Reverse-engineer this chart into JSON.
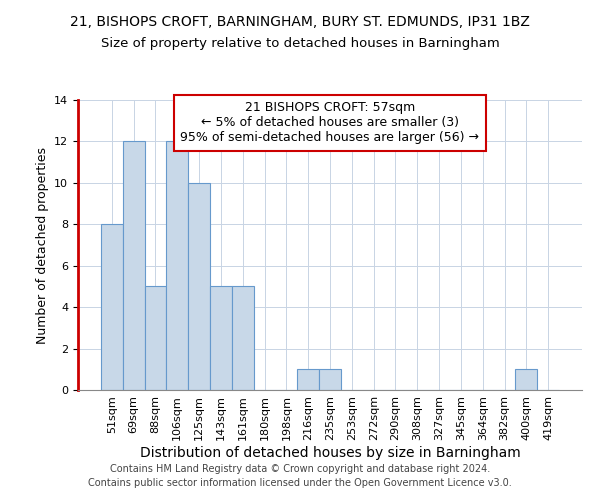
{
  "title": "21, BISHOPS CROFT, BARNINGHAM, BURY ST. EDMUNDS, IP31 1BZ",
  "subtitle": "Size of property relative to detached houses in Barningham",
  "xlabel": "Distribution of detached houses by size in Barningham",
  "ylabel": "Number of detached properties",
  "bin_labels": [
    "51sqm",
    "69sqm",
    "88sqm",
    "106sqm",
    "125sqm",
    "143sqm",
    "161sqm",
    "180sqm",
    "198sqm",
    "216sqm",
    "235sqm",
    "253sqm",
    "272sqm",
    "290sqm",
    "308sqm",
    "327sqm",
    "345sqm",
    "364sqm",
    "382sqm",
    "400sqm",
    "419sqm"
  ],
  "bar_heights": [
    8,
    12,
    5,
    12,
    10,
    5,
    5,
    0,
    0,
    1,
    1,
    0,
    0,
    0,
    0,
    0,
    0,
    0,
    0,
    1,
    0
  ],
  "bar_color": "#c8d8e8",
  "bar_edgecolor": "#6699cc",
  "annotation_box_edgecolor": "#cc0000",
  "annotation_lines": [
    "21 BISHOPS CROFT: 57sqm",
    "← 5% of detached houses are smaller (3)",
    "95% of semi-detached houses are larger (56) →"
  ],
  "vline_color": "#cc0000",
  "ylim": [
    0,
    14
  ],
  "yticks": [
    0,
    2,
    4,
    6,
    8,
    10,
    12,
    14
  ],
  "footer_line1": "Contains HM Land Registry data © Crown copyright and database right 2024.",
  "footer_line2": "Contains public sector information licensed under the Open Government Licence v3.0.",
  "title_fontsize": 10,
  "subtitle_fontsize": 9.5,
  "xlabel_fontsize": 10,
  "ylabel_fontsize": 9,
  "tick_fontsize": 8,
  "annotation_fontsize": 9,
  "footer_fontsize": 7
}
